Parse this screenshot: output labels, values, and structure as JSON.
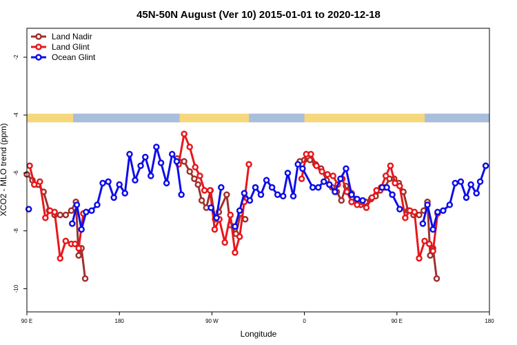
{
  "chart_data": {
    "type": "line",
    "title": "45N-50N August (Ver 10)   2015-01-01 to 2020-12-18",
    "xlabel": "Longitude",
    "ylabel": "XCO2 - MLO trend (ppm)",
    "xlim": [
      0,
      1
    ],
    "ylim": [
      -10.8,
      -1.0
    ],
    "x_ticks": [
      {
        "value": 0.0,
        "label": "90 E"
      },
      {
        "value": 0.2,
        "label": "180"
      },
      {
        "value": 0.4,
        "label": "90 W"
      },
      {
        "value": 0.6,
        "label": "0"
      },
      {
        "value": 0.8,
        "label": "90 E"
      },
      {
        "value": 1.0,
        "label": "180"
      }
    ],
    "y_ticks": [
      {
        "value": -2,
        "label": "-2"
      },
      {
        "value": -4,
        "label": "-4"
      },
      {
        "value": -6,
        "label": "-6"
      },
      {
        "value": -8,
        "label": "-8"
      },
      {
        "value": -10,
        "label": "-10"
      }
    ],
    "grid": false,
    "legend_position": "top-left",
    "land_mask_band": {
      "y_top": -3.95,
      "y_bottom": -4.25,
      "land_color": "#f7d77c",
      "ocean_color": "#a9bedc"
    },
    "series": [
      {
        "name": "Land Nadir",
        "color": "#a0302c",
        "points": [
          [
            0.0,
            -6.05
          ],
          [
            0.012,
            -6.25
          ],
          [
            0.024,
            -6.4
          ],
          [
            0.036,
            -6.65
          ],
          [
            0.048,
            -7.3
          ],
          [
            0.06,
            -7.45
          ],
          [
            0.072,
            -7.45
          ],
          [
            0.084,
            -7.45
          ],
          [
            0.096,
            -7.3
          ],
          [
            0.106,
            -7.0
          ],
          [
            0.112,
            -8.85
          ],
          [
            0.118,
            -8.6
          ],
          [
            0.126,
            -9.65
          ],
          [
            0.325,
            -5.5
          ],
          [
            0.34,
            -5.6
          ],
          [
            0.352,
            -5.95
          ],
          [
            0.362,
            -6.2
          ],
          [
            0.37,
            -6.4
          ],
          [
            0.378,
            -6.95
          ],
          [
            0.388,
            -7.2
          ],
          [
            0.397,
            -6.6
          ],
          [
            0.407,
            -7.6
          ],
          [
            0.415,
            -7.35
          ],
          [
            0.432,
            -6.75
          ],
          [
            0.44,
            -7.8
          ],
          [
            0.452,
            -8.1
          ],
          [
            0.462,
            -7.4
          ],
          [
            0.472,
            -7.6
          ],
          [
            0.59,
            -5.6
          ],
          [
            0.6,
            -5.55
          ],
          [
            0.612,
            -5.55
          ],
          [
            0.624,
            -5.7
          ],
          [
            0.636,
            -5.85
          ],
          [
            0.648,
            -6.25
          ],
          [
            0.66,
            -6.5
          ],
          [
            0.67,
            -6.65
          ],
          [
            0.68,
            -6.95
          ],
          [
            0.69,
            -6.45
          ],
          [
            0.702,
            -6.7
          ],
          [
            0.712,
            -6.9
          ],
          [
            0.722,
            -7.1
          ],
          [
            0.732,
            -7.0
          ],
          [
            0.744,
            -6.9
          ],
          [
            0.754,
            -6.8
          ],
          [
            0.764,
            -6.6
          ],
          [
            0.774,
            -6.5
          ],
          [
            0.784,
            -6.2
          ],
          [
            0.794,
            -6.2
          ],
          [
            0.804,
            -6.35
          ],
          [
            0.814,
            -6.65
          ],
          [
            0.824,
            -7.3
          ],
          [
            0.836,
            -7.45
          ],
          [
            0.848,
            -7.45
          ],
          [
            0.858,
            -7.3
          ],
          [
            0.866,
            -7.0
          ],
          [
            0.872,
            -8.85
          ],
          [
            0.878,
            -8.6
          ],
          [
            0.886,
            -9.65
          ]
        ]
      },
      {
        "name": "Land Glint",
        "color": "#e8161b",
        "points": [
          [
            0.006,
            -5.75
          ],
          [
            0.016,
            -6.4
          ],
          [
            0.028,
            -6.3
          ],
          [
            0.04,
            -7.55
          ],
          [
            0.05,
            -7.3
          ],
          [
            0.06,
            -7.35
          ],
          [
            0.072,
            -8.95
          ],
          [
            0.084,
            -8.35
          ],
          [
            0.096,
            -8.45
          ],
          [
            0.104,
            -8.45
          ],
          [
            0.112,
            -8.6
          ],
          [
            0.122,
            -7.4
          ],
          [
            0.328,
            -5.7
          ],
          [
            0.34,
            -4.65
          ],
          [
            0.352,
            -5.1
          ],
          [
            0.364,
            -5.8
          ],
          [
            0.374,
            -6.1
          ],
          [
            0.384,
            -6.6
          ],
          [
            0.396,
            -6.6
          ],
          [
            0.406,
            -7.95
          ],
          [
            0.416,
            -7.6
          ],
          [
            0.428,
            -8.4
          ],
          [
            0.44,
            -7.45
          ],
          [
            0.45,
            -8.75
          ],
          [
            0.46,
            -8.2
          ],
          [
            0.47,
            -7.0
          ],
          [
            0.48,
            -5.7
          ],
          [
            0.594,
            -6.2
          ],
          [
            0.604,
            -5.35
          ],
          [
            0.614,
            -5.35
          ],
          [
            0.626,
            -5.75
          ],
          [
            0.638,
            -5.95
          ],
          [
            0.65,
            -6.05
          ],
          [
            0.662,
            -6.1
          ],
          [
            0.672,
            -6.4
          ],
          [
            0.682,
            -6.2
          ],
          [
            0.692,
            -6.65
          ],
          [
            0.702,
            -7.0
          ],
          [
            0.714,
            -7.1
          ],
          [
            0.724,
            -7.0
          ],
          [
            0.734,
            -7.2
          ],
          [
            0.746,
            -6.85
          ],
          [
            0.756,
            -6.6
          ],
          [
            0.766,
            -6.5
          ],
          [
            0.776,
            -6.1
          ],
          [
            0.786,
            -5.75
          ],
          [
            0.796,
            -6.35
          ],
          [
            0.806,
            -6.45
          ],
          [
            0.818,
            -7.55
          ],
          [
            0.828,
            -7.3
          ],
          [
            0.838,
            -7.35
          ],
          [
            0.848,
            -8.95
          ],
          [
            0.86,
            -8.35
          ],
          [
            0.87,
            -8.45
          ],
          [
            0.878,
            -8.7
          ],
          [
            0.888,
            -7.4
          ]
        ]
      },
      {
        "name": "Ocean Glint",
        "color": "#0d0de8",
        "points": [
          [
            0.004,
            -7.25
          ],
          [
            0.098,
            -7.75
          ],
          [
            0.108,
            -7.1
          ],
          [
            0.118,
            -7.95
          ],
          [
            0.128,
            -7.35
          ],
          [
            0.14,
            -7.3
          ],
          [
            0.152,
            -7.1
          ],
          [
            0.164,
            -6.35
          ],
          [
            0.176,
            -6.3
          ],
          [
            0.188,
            -6.85
          ],
          [
            0.2,
            -6.4
          ],
          [
            0.212,
            -6.7
          ],
          [
            0.222,
            -5.35
          ],
          [
            0.234,
            -6.25
          ],
          [
            0.246,
            -5.75
          ],
          [
            0.256,
            -5.45
          ],
          [
            0.268,
            -6.1
          ],
          [
            0.28,
            -5.1
          ],
          [
            0.29,
            -5.65
          ],
          [
            0.302,
            -6.35
          ],
          [
            0.314,
            -5.35
          ],
          [
            0.324,
            -5.6
          ],
          [
            0.334,
            -6.75
          ],
          [
            0.398,
            -7.2
          ],
          [
            0.41,
            -7.55
          ],
          [
            0.42,
            -6.5
          ],
          [
            0.45,
            -7.85
          ],
          [
            0.46,
            -7.3
          ],
          [
            0.47,
            -6.7
          ],
          [
            0.482,
            -6.95
          ],
          [
            0.494,
            -6.5
          ],
          [
            0.506,
            -6.75
          ],
          [
            0.518,
            -6.25
          ],
          [
            0.53,
            -6.5
          ],
          [
            0.542,
            -6.75
          ],
          [
            0.554,
            -6.8
          ],
          [
            0.564,
            -6.0
          ],
          [
            0.576,
            -6.8
          ],
          [
            0.586,
            -5.7
          ],
          [
            0.596,
            -5.85
          ],
          [
            0.618,
            -6.5
          ],
          [
            0.63,
            -6.5
          ],
          [
            0.642,
            -6.3
          ],
          [
            0.654,
            -6.4
          ],
          [
            0.666,
            -6.65
          ],
          [
            0.678,
            -6.2
          ],
          [
            0.69,
            -5.85
          ],
          [
            0.702,
            -6.75
          ],
          [
            0.714,
            -6.9
          ],
          [
            0.726,
            -6.95
          ],
          [
            0.768,
            -6.5
          ],
          [
            0.778,
            -6.5
          ],
          [
            0.79,
            -6.75
          ],
          [
            0.806,
            -7.25
          ],
          [
            0.856,
            -7.75
          ],
          [
            0.866,
            -7.1
          ],
          [
            0.878,
            -7.95
          ],
          [
            0.888,
            -7.35
          ],
          [
            0.9,
            -7.3
          ],
          [
            0.914,
            -7.1
          ],
          [
            0.926,
            -6.35
          ],
          [
            0.938,
            -6.3
          ],
          [
            0.95,
            -6.85
          ],
          [
            0.96,
            -6.4
          ],
          [
            0.972,
            -6.7
          ],
          [
            0.98,
            -6.3
          ],
          [
            0.992,
            -5.75
          ]
        ]
      }
    ]
  }
}
